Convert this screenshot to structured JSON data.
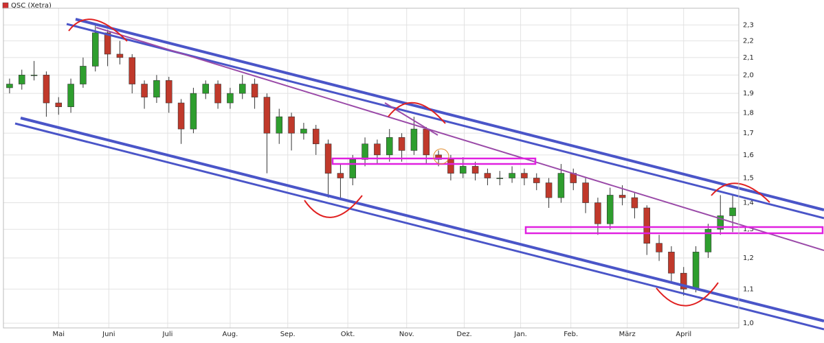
{
  "chart_data": {
    "type": "candlestick",
    "title": "QSC (Xetra)",
    "title_color": "#d03030",
    "log_y": true,
    "grid": true,
    "up_color": "#2e9e2e",
    "down_color": "#c0392b",
    "xlim": [
      -0.5,
      59.5
    ],
    "xticks": [
      {
        "value": 4.0,
        "label": "Mai"
      },
      {
        "value": 8.1,
        "label": "Juni"
      },
      {
        "value": 12.9,
        "label": "Juli"
      },
      {
        "value": 18.0,
        "label": "Aug."
      },
      {
        "value": 22.7,
        "label": "Sep."
      },
      {
        "value": 27.6,
        "label": "Okt."
      },
      {
        "value": 32.4,
        "label": "Nov."
      },
      {
        "value": 37.1,
        "label": "Dez."
      },
      {
        "value": 41.7,
        "label": "Jan."
      },
      {
        "value": 45.8,
        "label": "Feb."
      },
      {
        "value": 50.4,
        "label": "März"
      },
      {
        "value": 55.0,
        "label": "April"
      }
    ],
    "ylim": [
      0.987,
      2.41
    ],
    "yticks": [
      {
        "value": 1.0,
        "label": "1,0"
      },
      {
        "value": 1.1,
        "label": "1,1"
      },
      {
        "value": 1.2,
        "label": "1,2"
      },
      {
        "value": 1.3,
        "label": "1,3"
      },
      {
        "value": 1.4,
        "label": "1,4"
      },
      {
        "value": 1.5,
        "label": "1,5"
      },
      {
        "value": 1.6,
        "label": "1,6"
      },
      {
        "value": 1.7,
        "label": "1,7"
      },
      {
        "value": 1.8,
        "label": "1,8"
      },
      {
        "value": 1.9,
        "label": "1,9"
      },
      {
        "value": 2.0,
        "label": "2,0"
      },
      {
        "value": 2.1,
        "label": "2,1"
      },
      {
        "value": 2.2,
        "label": "2,2"
      },
      {
        "value": 2.3,
        "label": "2,3"
      }
    ],
    "open": [
      1.93,
      1.95,
      2.0,
      2.0,
      1.85,
      1.83,
      1.95,
      2.05,
      2.25,
      2.12,
      2.1,
      1.95,
      1.88,
      1.97,
      1.85,
      1.72,
      1.9,
      1.95,
      1.85,
      1.9,
      1.95,
      1.88,
      1.7,
      1.78,
      1.7,
      1.72,
      1.65,
      1.52,
      1.5,
      1.58,
      1.65,
      1.6,
      1.68,
      1.62,
      1.72,
      1.6,
      1.58,
      1.52,
      1.55,
      1.52,
      1.5,
      1.5,
      1.52,
      1.5,
      1.48,
      1.42,
      1.52,
      1.48,
      1.4,
      1.32,
      1.43,
      1.42,
      1.38,
      1.25,
      1.22,
      1.15,
      1.1,
      1.22,
      1.3,
      1.35
    ],
    "high": [
      1.98,
      2.03,
      2.08,
      2.02,
      1.88,
      1.98,
      2.1,
      2.3,
      2.27,
      2.2,
      2.12,
      1.97,
      2.0,
      1.99,
      1.87,
      1.93,
      1.97,
      1.97,
      1.93,
      2.0,
      1.98,
      1.9,
      1.82,
      1.8,
      1.75,
      1.74,
      1.67,
      1.56,
      1.6,
      1.68,
      1.67,
      1.72,
      1.7,
      1.78,
      1.73,
      1.62,
      1.6,
      1.59,
      1.57,
      1.54,
      1.53,
      1.55,
      1.54,
      1.52,
      1.5,
      1.56,
      1.54,
      1.5,
      1.42,
      1.46,
      1.47,
      1.44,
      1.39,
      1.28,
      1.24,
      1.17,
      1.24,
      1.32,
      1.43,
      1.43
    ],
    "low": [
      1.9,
      1.92,
      1.97,
      1.78,
      1.79,
      1.8,
      1.93,
      2.02,
      2.05,
      2.06,
      1.9,
      1.82,
      1.85,
      1.8,
      1.65,
      1.7,
      1.87,
      1.82,
      1.82,
      1.87,
      1.82,
      1.52,
      1.65,
      1.62,
      1.67,
      1.6,
      1.42,
      1.41,
      1.47,
      1.55,
      1.56,
      1.57,
      1.57,
      1.6,
      1.56,
      1.55,
      1.49,
      1.5,
      1.49,
      1.47,
      1.47,
      1.48,
      1.47,
      1.45,
      1.38,
      1.4,
      1.45,
      1.36,
      1.28,
      1.3,
      1.39,
      1.34,
      1.21,
      1.19,
      1.12,
      1.08,
      1.09,
      1.2,
      1.28,
      1.29
    ],
    "close": [
      1.95,
      2.0,
      2.0,
      1.85,
      1.83,
      1.95,
      2.05,
      2.25,
      2.12,
      2.1,
      1.95,
      1.88,
      1.97,
      1.85,
      1.72,
      1.9,
      1.95,
      1.85,
      1.9,
      1.95,
      1.88,
      1.7,
      1.78,
      1.7,
      1.72,
      1.65,
      1.52,
      1.5,
      1.58,
      1.65,
      1.6,
      1.68,
      1.62,
      1.72,
      1.6,
      1.58,
      1.52,
      1.55,
      1.52,
      1.5,
      1.5,
      1.52,
      1.5,
      1.48,
      1.42,
      1.52,
      1.48,
      1.4,
      1.32,
      1.43,
      1.42,
      1.38,
      1.25,
      1.22,
      1.15,
      1.1,
      1.22,
      1.3,
      1.35,
      1.38
    ]
  }
}
